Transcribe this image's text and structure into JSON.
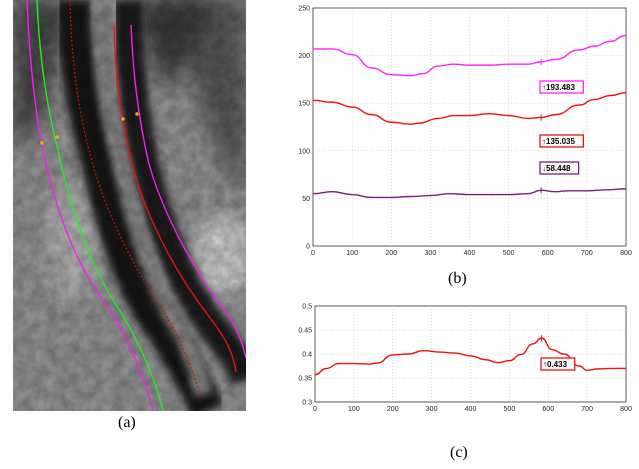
{
  "captions": {
    "a": "(a)",
    "b": "(b)",
    "c": "(c)"
  },
  "colors": {
    "magenta": "#ff22ff",
    "red": "#ee1111",
    "purple": "#772277",
    "green": "#22ee22",
    "orange": "#ffaa00"
  },
  "chart_data": [
    {
      "type": "line",
      "panel": "(b)",
      "title": "",
      "xlabel": "",
      "ylabel": "",
      "xlim": [
        0,
        800
      ],
      "ylim": [
        0,
        250
      ],
      "xticks": [
        "0",
        "100",
        "200",
        "300",
        "400",
        "500",
        "600",
        "700",
        "800"
      ],
      "yticks": [
        "0",
        "50",
        "100",
        "150",
        "200",
        "250"
      ],
      "grid": true,
      "series": [
        {
          "color": "#ff22ff",
          "x": [
            0,
            50,
            100,
            150,
            200,
            250,
            280,
            320,
            360,
            400,
            450,
            500,
            550,
            583,
            620,
            680,
            720,
            760,
            800
          ],
          "y": [
            207,
            207,
            201,
            187,
            180,
            179,
            181,
            189,
            191,
            190,
            190,
            191,
            191,
            193.483,
            196,
            206,
            210,
            215,
            221
          ]
        },
        {
          "color": "#ee1111",
          "x": [
            0,
            50,
            100,
            150,
            200,
            250,
            270,
            320,
            360,
            400,
            450,
            500,
            550,
            583,
            620,
            680,
            720,
            760,
            800
          ],
          "y": [
            153,
            151,
            146,
            138,
            130,
            128,
            129,
            134,
            137,
            137,
            139,
            137,
            134,
            135.035,
            138,
            148,
            154,
            158,
            161
          ]
        },
        {
          "color": "#772277",
          "x": [
            0,
            50,
            100,
            150,
            200,
            250,
            300,
            350,
            400,
            450,
            500,
            550,
            583,
            620,
            650,
            700,
            750,
            800
          ],
          "y": [
            55,
            57,
            54,
            51,
            51,
            52,
            53,
            55,
            54,
            54,
            54,
            55,
            58.448,
            57,
            58,
            58,
            59,
            60
          ]
        }
      ],
      "annotations": [
        {
          "text": "193.483",
          "arrow": "↑",
          "color": "#ff22ff",
          "x": 583,
          "y": 193.483
        },
        {
          "text": "135.035",
          "arrow": "↑",
          "color": "#ee1111",
          "x": 583,
          "y": 135.035
        },
        {
          "text": "58.448",
          "arrow": "↓",
          "color": "#772277",
          "x": 583,
          "y": 58.448
        }
      ]
    },
    {
      "type": "line",
      "panel": "(c)",
      "title": "",
      "xlabel": "",
      "ylabel": "",
      "xlim": [
        0,
        800
      ],
      "ylim": [
        0.3,
        0.5
      ],
      "xticks": [
        "0",
        "100",
        "200",
        "300",
        "400",
        "500",
        "600",
        "700",
        "800"
      ],
      "yticks": [
        "0.3",
        "0.35",
        "0.4",
        "0.45",
        "0.5"
      ],
      "grid": true,
      "series": [
        {
          "color": "#ee1111",
          "x": [
            0,
            30,
            60,
            100,
            140,
            160,
            200,
            240,
            280,
            320,
            360,
            400,
            440,
            470,
            500,
            530,
            560,
            583,
            610,
            640,
            680,
            700,
            730,
            760,
            800
          ],
          "y": [
            0.357,
            0.37,
            0.38,
            0.38,
            0.379,
            0.381,
            0.398,
            0.4,
            0.407,
            0.404,
            0.402,
            0.396,
            0.388,
            0.382,
            0.386,
            0.399,
            0.421,
            0.433,
            0.409,
            0.4,
            0.375,
            0.366,
            0.369,
            0.37,
            0.37
          ]
        }
      ],
      "annotations": [
        {
          "text": "0.433",
          "arrow": "↑",
          "color": "#ee1111",
          "x": 583,
          "y": 0.433
        }
      ]
    }
  ]
}
